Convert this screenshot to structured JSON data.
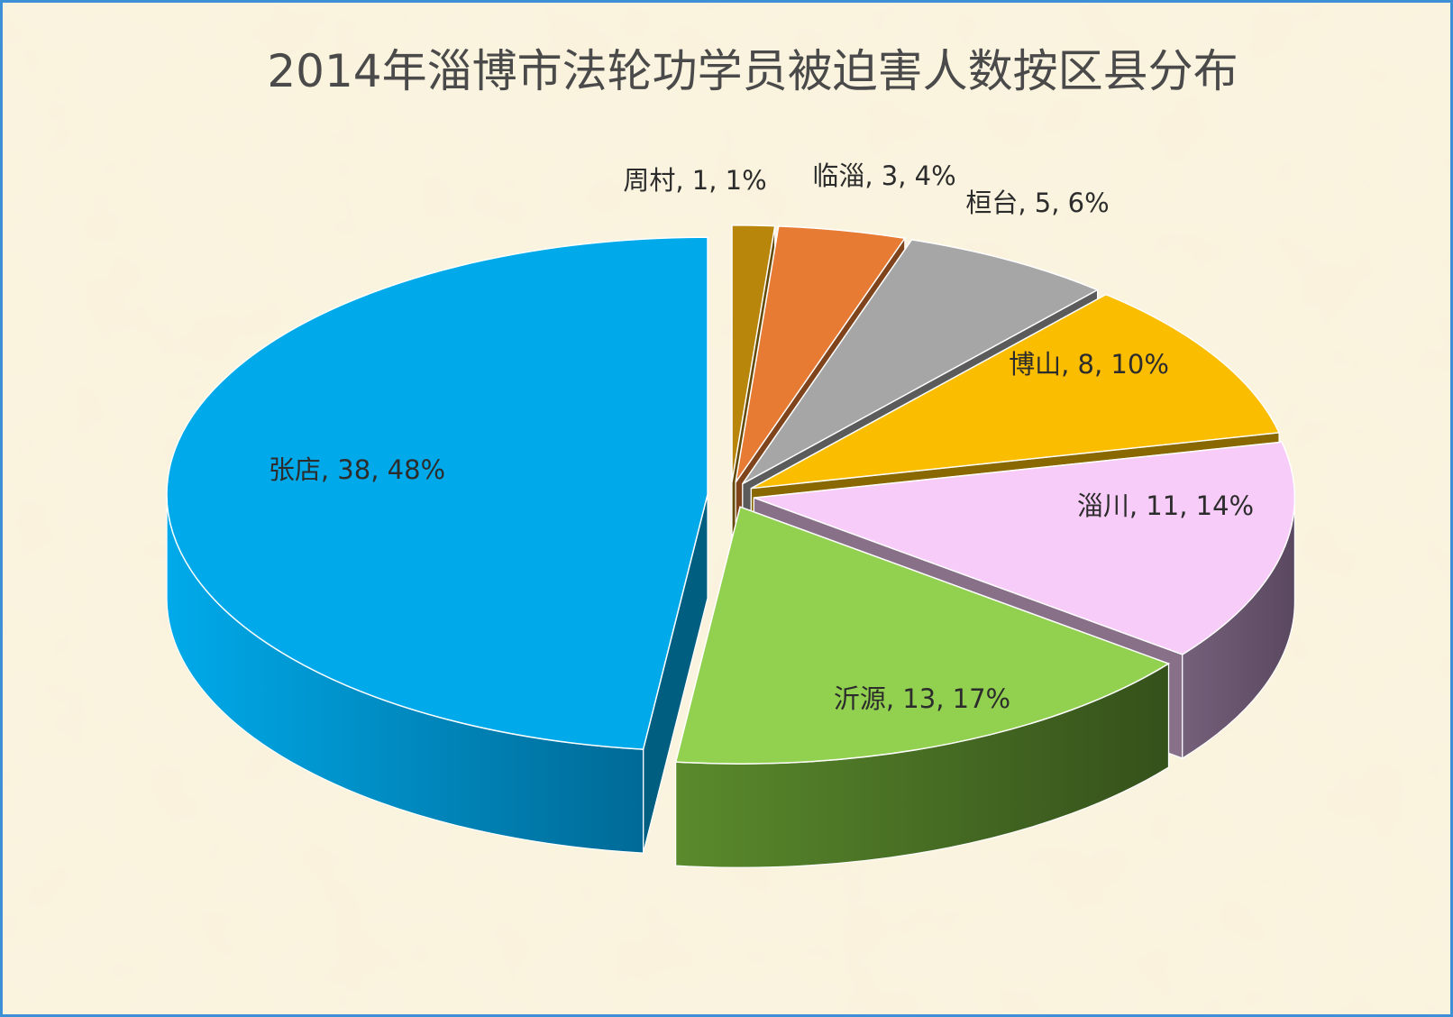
{
  "chart_data": {
    "type": "pie",
    "style": "3d-exploded",
    "title": "2014年淄博市法轮功学员被迫害人数按区县分布",
    "slices": [
      {
        "name": "周村",
        "value": 1,
        "percent": "1%",
        "label": "周村, 1, 1%",
        "color": "#b8860b"
      },
      {
        "name": "临淄",
        "value": 3,
        "percent": "4%",
        "label": "临淄, 3, 4%",
        "color": "#e87b33"
      },
      {
        "name": "桓台",
        "value": 5,
        "percent": "6%",
        "label": "桓台, 5, 6%",
        "color": "#a6a6a6"
      },
      {
        "name": "博山",
        "value": 8,
        "percent": "10%",
        "label": "博山, 8, 10%",
        "color": "#fbbd00"
      },
      {
        "name": "淄川",
        "value": 11,
        "percent": "14%",
        "label": "淄川, 11, 14%",
        "color": "#f8ccf8"
      },
      {
        "name": "沂源",
        "value": 13,
        "percent": "17%",
        "label": "沂源, 13, 17%",
        "color": "#92d050"
      },
      {
        "name": "张店",
        "value": 38,
        "percent": "48%",
        "label": "张店, 38, 48%",
        "color": "#00aaea"
      }
    ],
    "total": 79,
    "legend": "none",
    "grid": false
  },
  "colors": {
    "background": "#f8efd6",
    "border": "#3d8fd6",
    "title": "#4a4a4a"
  }
}
